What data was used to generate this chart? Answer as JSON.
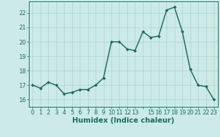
{
  "x": [
    0,
    1,
    2,
    3,
    4,
    5,
    6,
    7,
    8,
    9,
    10,
    11,
    12,
    13,
    14,
    15,
    16,
    17,
    18,
    19,
    20,
    21,
    22,
    23
  ],
  "y": [
    17.0,
    16.8,
    17.2,
    17.0,
    16.4,
    16.5,
    16.7,
    16.7,
    17.0,
    17.5,
    20.0,
    20.0,
    19.5,
    19.4,
    20.7,
    20.3,
    20.4,
    22.2,
    22.4,
    20.7,
    18.1,
    17.0,
    16.9,
    16.0
  ],
  "line_color": "#1a6b5a",
  "marker": "D",
  "marker_size": 2.0,
  "bg_color": "#cceae7",
  "grid_color": "#aad4d0",
  "tick_color": "#1a6b5a",
  "xlabel": "Humidex (Indice chaleur)",
  "xlabel_fontsize": 7.5,
  "xlabel_color": "#1a6b5a",
  "xlim": [
    -0.5,
    23.5
  ],
  "ylim": [
    15.5,
    22.8
  ],
  "yticks": [
    16,
    17,
    18,
    19,
    20,
    21,
    22
  ],
  "xticks": [
    0,
    1,
    2,
    3,
    4,
    5,
    6,
    7,
    8,
    9,
    10,
    11,
    12,
    13,
    14,
    15,
    16,
    17,
    18,
    19,
    20,
    21,
    22,
    23
  ],
  "xtick_labels": [
    "0",
    "1",
    "2",
    "3",
    "4",
    "5",
    "6",
    "7",
    "8",
    "9",
    "10",
    "11",
    "12",
    "13",
    "",
    "15",
    "16",
    "17",
    "18",
    "19",
    "20",
    "21",
    "22",
    "23"
  ],
  "tick_fontsize": 6.0,
  "line_width": 1.1
}
